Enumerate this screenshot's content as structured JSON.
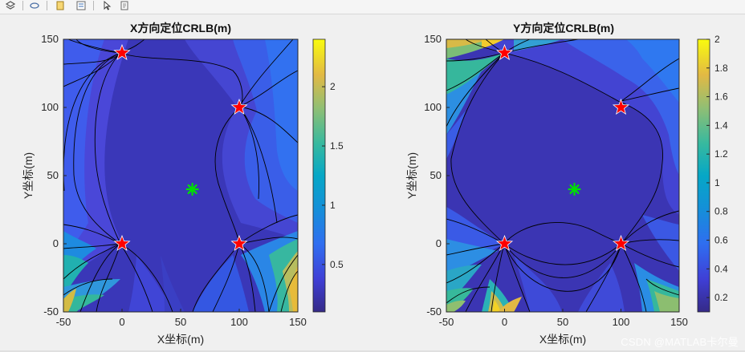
{
  "window": {
    "toolbar_icons": [
      "layers-icon",
      "link-icon",
      "data-cursor-icon",
      "legend-icon",
      "pointer-icon",
      "doc-icon"
    ],
    "watermark": "CSDN @MATLAB卡尔曼"
  },
  "chart_data": [
    {
      "type": "contour",
      "title": "X方向定位CRLB(m)",
      "xlabel": "X坐标(m)",
      "ylabel": "Y坐标(m)",
      "xlim": [
        -50,
        150
      ],
      "ylim": [
        -50,
        150
      ],
      "xticks": [
        "-50",
        "0",
        "50",
        "100",
        "150"
      ],
      "yticks": [
        "150",
        "100",
        "50",
        "0",
        "-50"
      ],
      "colorbar": {
        "range": [
          0.1,
          2.4
        ],
        "ticks": [
          "2",
          "1.5",
          "1",
          "0.5"
        ]
      },
      "anchors": [
        [
          0,
          140
        ],
        [
          100,
          100
        ],
        [
          0,
          0
        ],
        [
          100,
          0
        ]
      ],
      "target": [
        60,
        40
      ]
    },
    {
      "type": "contour",
      "title": "Y方向定位CRLB(m)",
      "xlabel": "X坐标(m)",
      "ylabel": "Y坐标(m)",
      "xlim": [
        -50,
        150
      ],
      "ylim": [
        -50,
        150
      ],
      "xticks": [
        "-50",
        "0",
        "50",
        "100",
        "150"
      ],
      "yticks": [
        "150",
        "100",
        "50",
        "0",
        "-50"
      ],
      "colorbar": {
        "range": [
          0.1,
          2.0
        ],
        "ticks": [
          "2",
          "1.8",
          "1.6",
          "1.4",
          "1.2",
          "1",
          "0.8",
          "0.6",
          "0.4",
          "0.2"
        ]
      },
      "anchors": [
        [
          0,
          140
        ],
        [
          100,
          100
        ],
        [
          0,
          0
        ],
        [
          100,
          0
        ]
      ],
      "target": [
        60,
        40
      ]
    }
  ]
}
